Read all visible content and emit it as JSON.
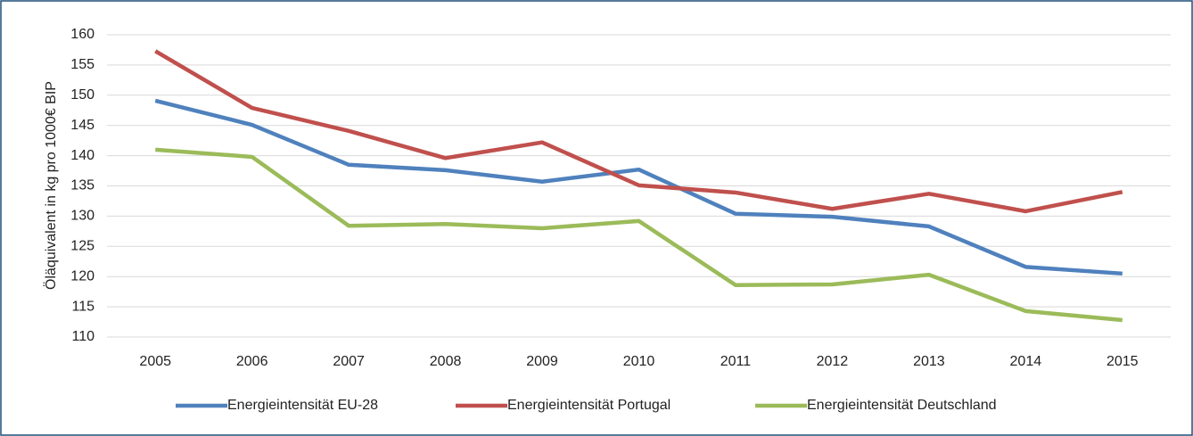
{
  "chart_data": {
    "type": "line",
    "y_label": "Öläquivalent in kg pro 1000€ BIP",
    "categories": [
      "2005",
      "2006",
      "2007",
      "2008",
      "2009",
      "2010",
      "2011",
      "2012",
      "2013",
      "2014",
      "2015"
    ],
    "series": [
      {
        "name": "Energieintensität EU-28",
        "color": "#4f81bd",
        "values": [
          149.1,
          145.1,
          138.5,
          137.6,
          135.7,
          137.7,
          130.4,
          129.9,
          128.3,
          121.6,
          120.5
        ]
      },
      {
        "name": "Energieintensität Portugal",
        "color": "#c0504d",
        "values": [
          157.3,
          147.9,
          144.1,
          139.6,
          142.2,
          135.1,
          133.9,
          131.2,
          133.7,
          130.8,
          134.0
        ]
      },
      {
        "name": "Energieintensität Deutschland",
        "color": "#9bbb59",
        "values": [
          141.0,
          139.8,
          128.4,
          128.7,
          128.0,
          129.2,
          118.6,
          118.7,
          120.3,
          114.3,
          112.8
        ]
      }
    ],
    "ylim": [
      110,
      160
    ],
    "yticks": [
      110,
      115,
      120,
      125,
      130,
      135,
      140,
      145,
      150,
      155,
      160
    ],
    "grid": true,
    "legend": "bottom"
  }
}
